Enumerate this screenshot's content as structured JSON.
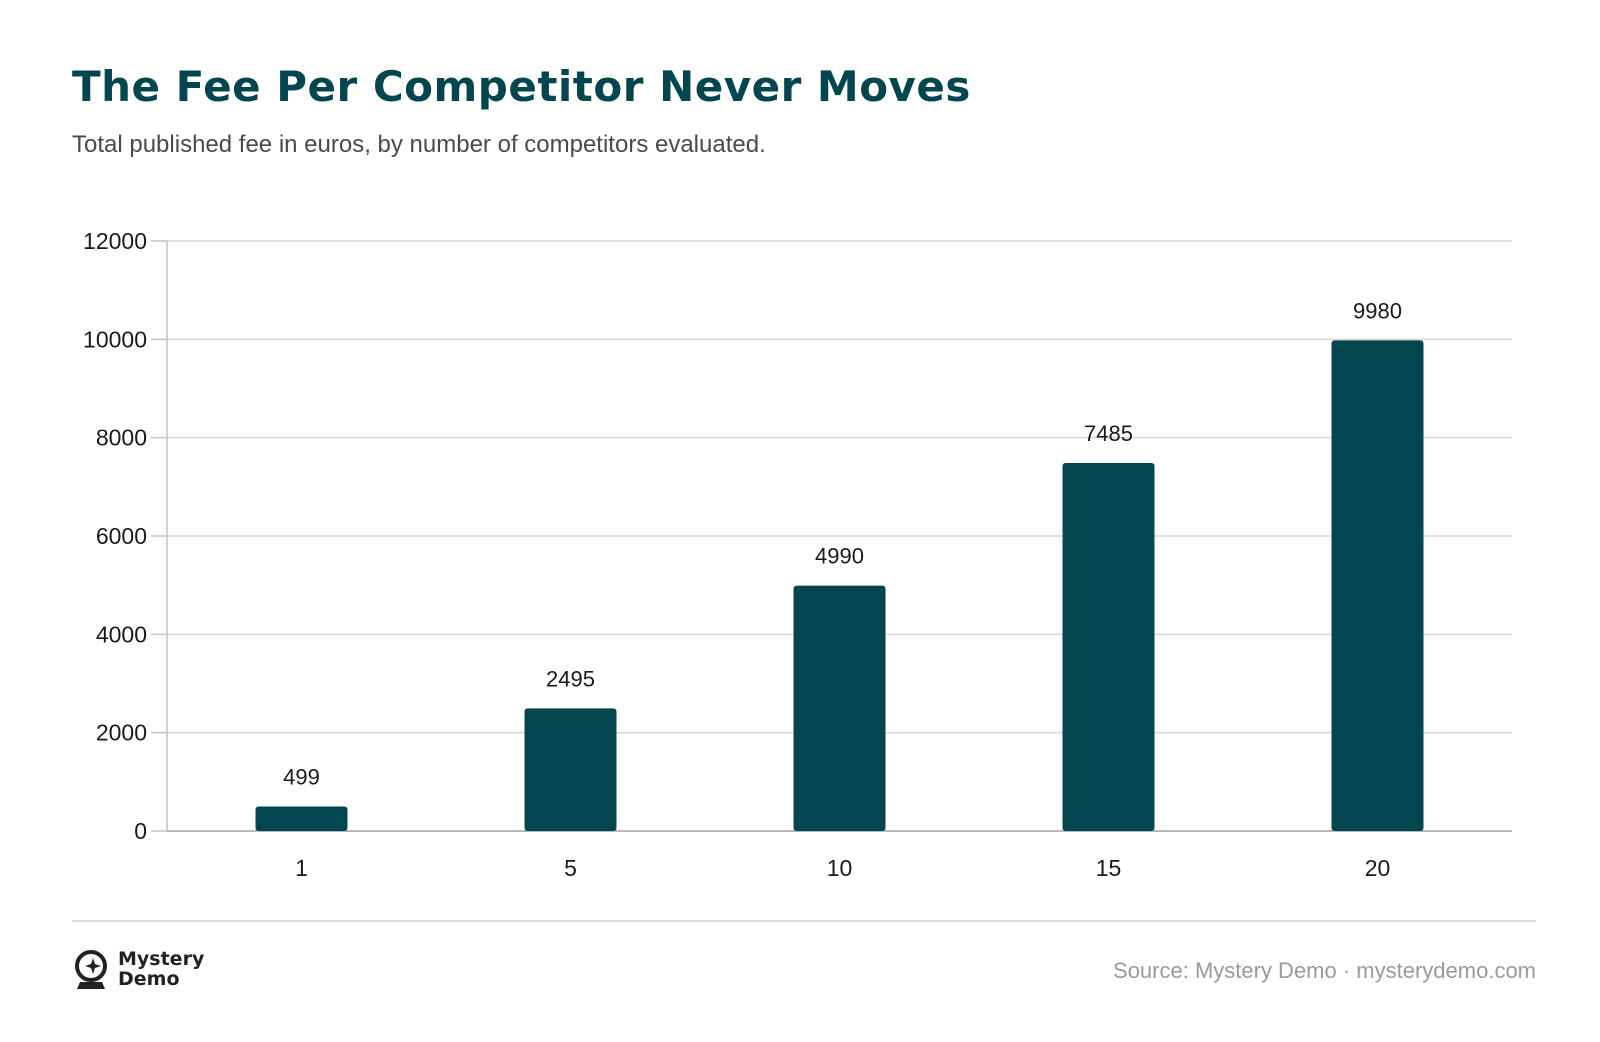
{
  "header": {
    "title": "The Fee Per Competitor Never Moves",
    "subtitle": "Total published fee in euros, by number of competitors evaluated."
  },
  "chart_data": {
    "type": "bar",
    "categories": [
      "1",
      "5",
      "10",
      "15",
      "20"
    ],
    "values": [
      499,
      2495,
      4990,
      7485,
      9980
    ],
    "data_labels": [
      "499",
      "2495",
      "4990",
      "7485",
      "9980"
    ],
    "title": "The Fee Per Competitor Never Moves",
    "subtitle": "Total published fee in euros, by number of competitors evaluated.",
    "xlabel": "",
    "ylabel": "",
    "ylim": [
      0,
      12000
    ],
    "yticks": [
      0,
      2000,
      4000,
      6000,
      8000,
      10000,
      12000
    ],
    "ytick_labels": [
      "0",
      "2000",
      "4000",
      "6000",
      "8000",
      "10000",
      "12000"
    ],
    "grid": true,
    "legend": "none",
    "bar_color": "#04464f"
  },
  "footer": {
    "brand_line1": "Mystery",
    "brand_line2": "Demo",
    "logo_icon": "crystal-ball-sparkle-icon",
    "source": "Source: Mystery Demo · mysterydemo.com"
  }
}
